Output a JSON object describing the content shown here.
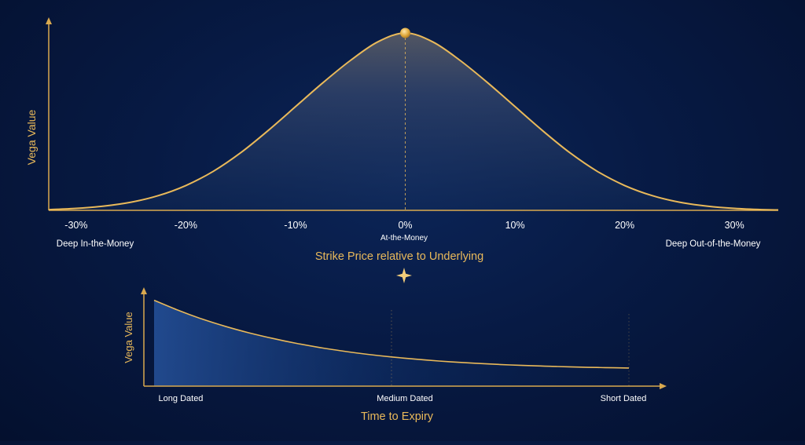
{
  "colors": {
    "accent": "#e9b95a",
    "axis": "#d9a94f",
    "tick_text": "#ffffff",
    "background": "#071a44"
  },
  "chart_data": [
    {
      "type": "line",
      "xlabel": "Strike Price relative to Underlying",
      "ylabel": "Vega Value",
      "x_ticks": [
        {
          "value": -30,
          "label": "-30%"
        },
        {
          "value": -20,
          "label": "-20%"
        },
        {
          "value": -10,
          "label": "-10%"
        },
        {
          "value": 0,
          "label": "0%"
        },
        {
          "value": 10,
          "label": "10%"
        },
        {
          "value": 20,
          "label": "20%"
        },
        {
          "value": 30,
          "label": "30%"
        }
      ],
      "xlim": [
        -32.5,
        34
      ],
      "ylim": [
        0,
        1
      ],
      "region_labels": {
        "left": "Deep In-the-Money",
        "center": "At-the-Money",
        "right": "Deep Out-of-the-Money"
      },
      "series": [
        {
          "x": [
            -32.5,
            -30,
            -27.5,
            -25,
            -22.5,
            -20,
            -17.5,
            -15,
            -12.5,
            -10,
            -7.5,
            -5,
            -2.5,
            0,
            2.5,
            5,
            7.5,
            10,
            12.5,
            15,
            17.5,
            20,
            22.5,
            25,
            27.5,
            30,
            32.5,
            34
          ],
          "y": [
            0.004,
            0.011,
            0.024,
            0.046,
            0.083,
            0.14,
            0.22,
            0.325,
            0.45,
            0.585,
            0.72,
            0.845,
            0.95,
            1.0,
            0.95,
            0.845,
            0.72,
            0.585,
            0.45,
            0.325,
            0.22,
            0.14,
            0.083,
            0.046,
            0.024,
            0.011,
            0.004,
            0.002
          ]
        }
      ],
      "peak": {
        "x": 0,
        "y": 1.0
      },
      "grid": false
    },
    {
      "type": "line",
      "xlabel": "Time to Expiry",
      "ylabel": "Vega Value",
      "categories": [
        "Long Dated",
        "Medium Dated",
        "Short Dated"
      ],
      "xlim": [
        0,
        1
      ],
      "ylim": [
        0,
        1
      ],
      "series": [
        {
          "x": [
            0,
            0.05,
            0.1,
            0.15,
            0.2,
            0.25,
            0.3,
            0.35,
            0.4,
            0.45,
            0.5,
            0.55,
            0.6,
            0.65,
            0.7,
            0.75,
            0.8,
            0.85,
            0.9,
            0.95,
            1.0
          ],
          "y": [
            0.96,
            0.85,
            0.752,
            0.668,
            0.596,
            0.533,
            0.478,
            0.431,
            0.39,
            0.355,
            0.326,
            0.302,
            0.281,
            0.264,
            0.249,
            0.237,
            0.227,
            0.219,
            0.212,
            0.207,
            0.203
          ]
        }
      ],
      "grid": false
    }
  ]
}
